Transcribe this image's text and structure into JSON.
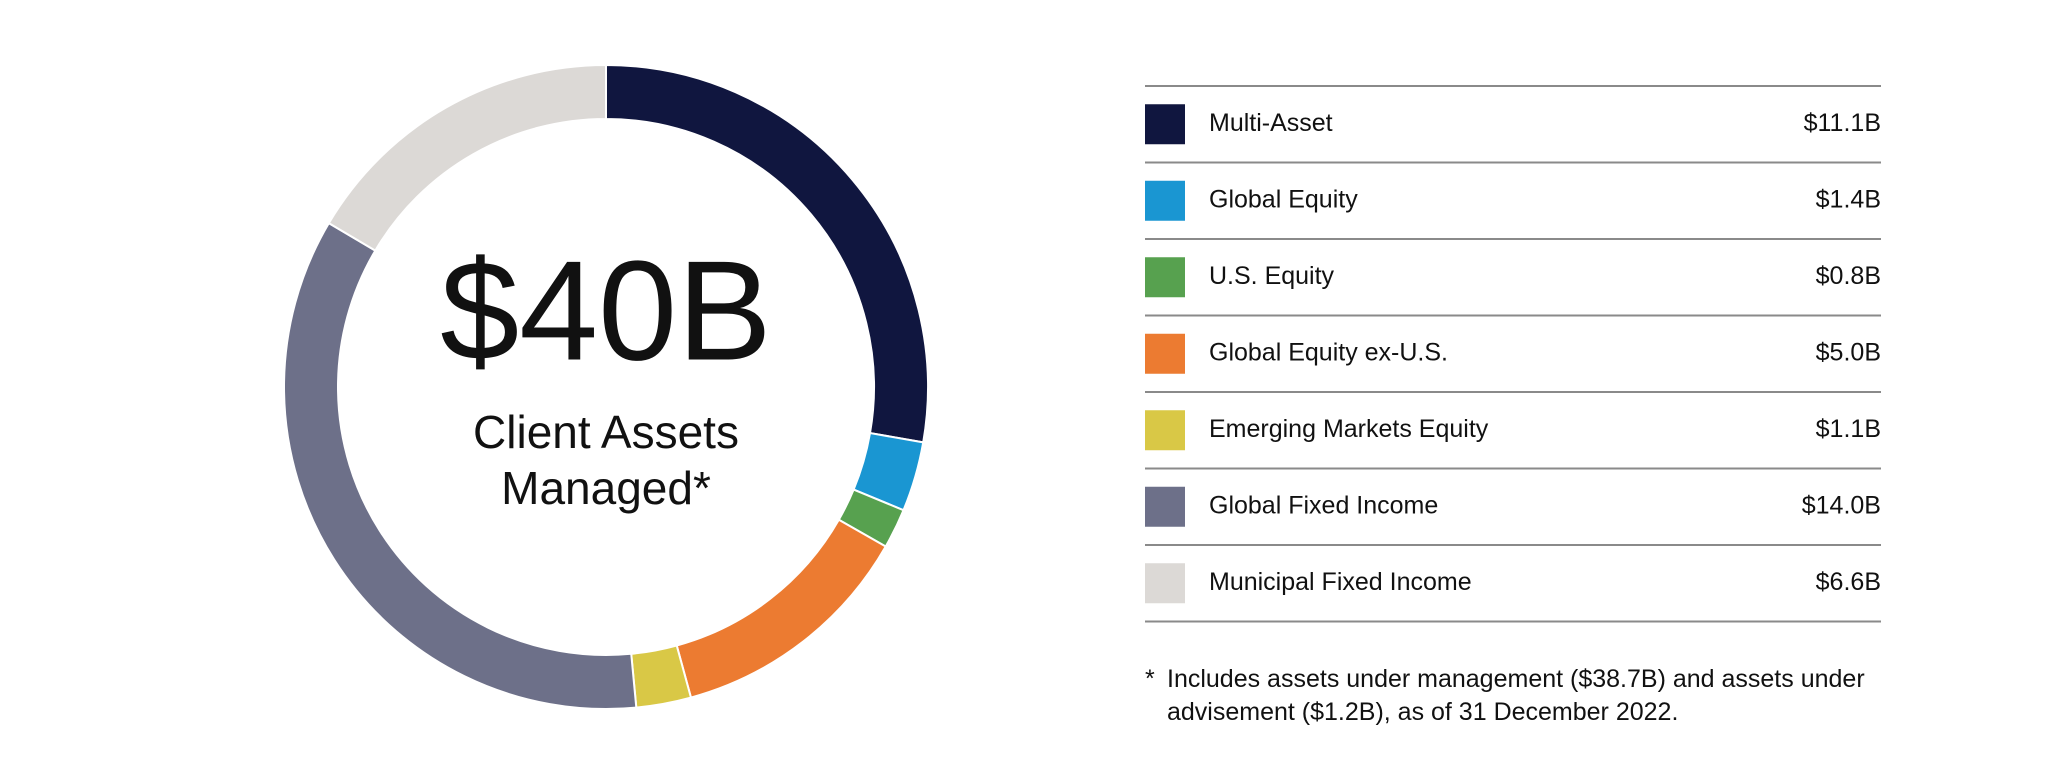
{
  "chart_data": {
    "type": "donut",
    "center_label": "$40B",
    "center_caption": [
      "Client Assets",
      "Managed*"
    ],
    "categories": [
      "Multi-Asset",
      "Global Equity",
      "U.S. Equity",
      "Global Equity ex-U.S.",
      "Emerging Markets Equity",
      "Global Fixed Income",
      "Municipal Fixed Income"
    ],
    "values": [
      11.1,
      1.4,
      0.8,
      5.0,
      1.1,
      14.0,
      6.6
    ],
    "value_labels": [
      "$11.1B",
      "$1.4B",
      "$0.8B",
      "$5.0B",
      "$1.1B",
      "$14.0B",
      "$6.6B"
    ],
    "colors": [
      "#10163f",
      "#1a96d2",
      "#57a14f",
      "#ec7b31",
      "#d9c846",
      "#6d7089",
      "#dcd9d6"
    ],
    "footnote_marker": "*",
    "footnote": "Includes assets under management ($38.7B) and assets under advisement ($1.2B), as of 31 December 2022."
  }
}
